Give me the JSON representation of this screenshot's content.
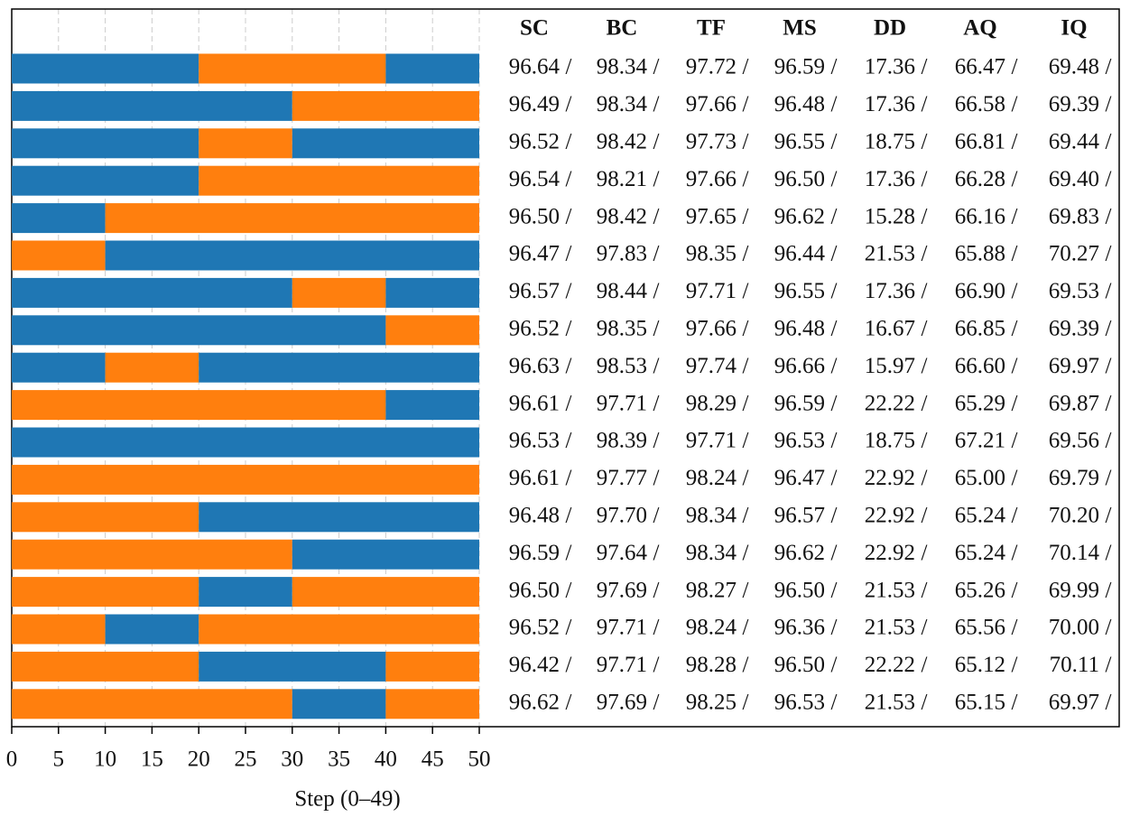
{
  "chart_data": {
    "type": "segmented-bar",
    "xlabel": "Step (0–49)",
    "xlim": [
      0,
      50
    ],
    "xticks": [
      0,
      5,
      10,
      15,
      20,
      25,
      30,
      35,
      40,
      45,
      50
    ],
    "grid": true,
    "rows": [
      {
        "segments": [
          20,
          20,
          10
        ],
        "colors": [
          "#1f77b4",
          "#ff7f0e",
          "#1f77b4"
        ]
      },
      {
        "segments": [
          30,
          20
        ],
        "colors": [
          "#1f77b4",
          "#ff7f0e"
        ]
      },
      {
        "segments": [
          20,
          10,
          20
        ],
        "colors": [
          "#1f77b4",
          "#ff7f0e",
          "#1f77b4"
        ]
      },
      {
        "segments": [
          20,
          30
        ],
        "colors": [
          "#1f77b4",
          "#ff7f0e"
        ]
      },
      {
        "segments": [
          10,
          40
        ],
        "colors": [
          "#1f77b4",
          "#ff7f0e"
        ]
      },
      {
        "segments": [
          10,
          40
        ],
        "colors": [
          "#ff7f0e",
          "#1f77b4"
        ]
      },
      {
        "segments": [
          30,
          10,
          10
        ],
        "colors": [
          "#1f77b4",
          "#ff7f0e",
          "#1f77b4"
        ]
      },
      {
        "segments": [
          40,
          10
        ],
        "colors": [
          "#1f77b4",
          "#ff7f0e"
        ]
      },
      {
        "segments": [
          10,
          10,
          30
        ],
        "colors": [
          "#1f77b4",
          "#ff7f0e",
          "#1f77b4"
        ]
      },
      {
        "segments": [
          40,
          10
        ],
        "colors": [
          "#ff7f0e",
          "#1f77b4"
        ]
      },
      {
        "segments": [
          50
        ],
        "colors": [
          "#1f77b4"
        ]
      },
      {
        "segments": [
          50
        ],
        "colors": [
          "#ff7f0e"
        ]
      },
      {
        "segments": [
          20,
          30
        ],
        "colors": [
          "#ff7f0e",
          "#1f77b4"
        ]
      },
      {
        "segments": [
          30,
          20
        ],
        "colors": [
          "#ff7f0e",
          "#1f77b4"
        ]
      },
      {
        "segments": [
          20,
          10,
          20
        ],
        "colors": [
          "#ff7f0e",
          "#1f77b4",
          "#ff7f0e"
        ]
      },
      {
        "segments": [
          10,
          10,
          30
        ],
        "colors": [
          "#ff7f0e",
          "#1f77b4",
          "#ff7f0e"
        ]
      },
      {
        "segments": [
          20,
          20,
          10
        ],
        "colors": [
          "#ff7f0e",
          "#1f77b4",
          "#ff7f0e"
        ]
      },
      {
        "segments": [
          30,
          10,
          10
        ],
        "colors": [
          "#ff7f0e",
          "#1f77b4",
          "#ff7f0e"
        ]
      }
    ],
    "table": {
      "columns": [
        "SC",
        "BC",
        "TF",
        "MS",
        "DD",
        "AQ",
        "IQ"
      ],
      "separator": "/",
      "rows": [
        [
          "96.64",
          "98.34",
          "97.72",
          "96.59",
          "17.36",
          "66.47",
          "69.48"
        ],
        [
          "96.49",
          "98.34",
          "97.66",
          "96.48",
          "17.36",
          "66.58",
          "69.39"
        ],
        [
          "96.52",
          "98.42",
          "97.73",
          "96.55",
          "18.75",
          "66.81",
          "69.44"
        ],
        [
          "96.54",
          "98.21",
          "97.66",
          "96.50",
          "17.36",
          "66.28",
          "69.40"
        ],
        [
          "96.50",
          "98.42",
          "97.65",
          "96.62",
          "15.28",
          "66.16",
          "69.83"
        ],
        [
          "96.47",
          "97.83",
          "98.35",
          "96.44",
          "21.53",
          "65.88",
          "70.27"
        ],
        [
          "96.57",
          "98.44",
          "97.71",
          "96.55",
          "17.36",
          "66.90",
          "69.53"
        ],
        [
          "96.52",
          "98.35",
          "97.66",
          "96.48",
          "16.67",
          "66.85",
          "69.39"
        ],
        [
          "96.63",
          "98.53",
          "97.74",
          "96.66",
          "15.97",
          "66.60",
          "69.97"
        ],
        [
          "96.61",
          "97.71",
          "98.29",
          "96.59",
          "22.22",
          "65.29",
          "69.87"
        ],
        [
          "96.53",
          "98.39",
          "97.71",
          "96.53",
          "18.75",
          "67.21",
          "69.56"
        ],
        [
          "96.61",
          "97.77",
          "98.24",
          "96.47",
          "22.92",
          "65.00",
          "69.79"
        ],
        [
          "96.48",
          "97.70",
          "98.34",
          "96.57",
          "22.92",
          "65.24",
          "70.20"
        ],
        [
          "96.59",
          "97.64",
          "98.34",
          "96.62",
          "22.92",
          "65.24",
          "70.14"
        ],
        [
          "96.50",
          "97.69",
          "98.27",
          "96.50",
          "21.53",
          "65.26",
          "69.99"
        ],
        [
          "96.52",
          "97.71",
          "98.24",
          "96.36",
          "21.53",
          "65.56",
          "70.00"
        ],
        [
          "96.42",
          "97.71",
          "98.28",
          "96.50",
          "22.22",
          "65.12",
          "70.11"
        ],
        [
          "96.62",
          "97.69",
          "98.25",
          "96.53",
          "21.53",
          "65.15",
          "69.97"
        ]
      ]
    }
  }
}
